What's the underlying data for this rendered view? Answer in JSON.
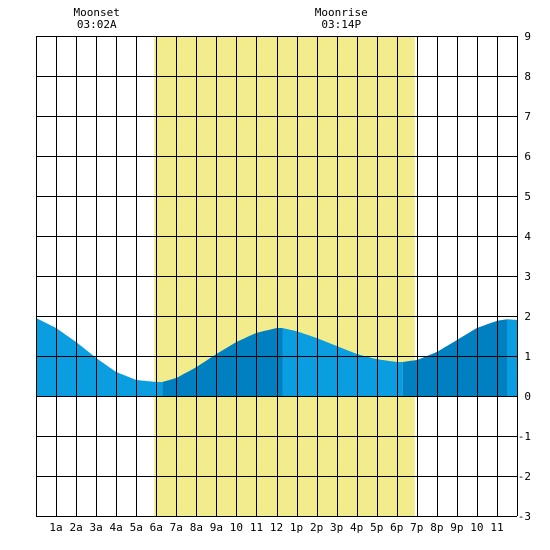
{
  "chart_data": {
    "type": "area",
    "x_tick_labels": [
      "1a",
      "2a",
      "3a",
      "4a",
      "5a",
      "6a",
      "7a",
      "8a",
      "9a",
      "10",
      "11",
      "12",
      "1p",
      "2p",
      "3p",
      "4p",
      "5p",
      "6p",
      "7p",
      "8p",
      "9p",
      "10",
      "11"
    ],
    "y_tick_labels": [
      "9",
      "8",
      "7",
      "6",
      "5",
      "4",
      "3",
      "2",
      "1",
      "0",
      "-1",
      "-2",
      "-3"
    ],
    "xlim": [
      0,
      24
    ],
    "ylim": [
      -3,
      9
    ],
    "grid": true,
    "daylight": {
      "start_hour": 5.9,
      "end_hour": 18.9,
      "color": "#f2ec8c"
    },
    "annotations": [
      {
        "title": "Moonset",
        "time": "03:02A",
        "hour": 3.03
      },
      {
        "title": "Moonrise",
        "time": "03:14P",
        "hour": 15.23
      }
    ],
    "series": [
      {
        "x": [
          0,
          1,
          2,
          3,
          4,
          5,
          6,
          6.3,
          7,
          8,
          9,
          10,
          11,
          12,
          12.3,
          13,
          14,
          15,
          16,
          17,
          18,
          18.3,
          19,
          20,
          21,
          22,
          23,
          23.5,
          24
        ],
        "y": [
          1.95,
          1.7,
          1.35,
          0.95,
          0.6,
          0.4,
          0.35,
          0.35,
          0.45,
          0.72,
          1.05,
          1.35,
          1.58,
          1.7,
          1.7,
          1.62,
          1.45,
          1.25,
          1.05,
          0.92,
          0.85,
          0.85,
          0.9,
          1.1,
          1.4,
          1.7,
          1.88,
          1.92,
          1.9
        ]
      }
    ],
    "tide_turns": [
      6.3,
      12.3,
      18.3,
      23.5
    ],
    "colors": {
      "water_light": "#0a9ee0",
      "water_dark": "#0080c0",
      "grid": "#000000"
    }
  }
}
